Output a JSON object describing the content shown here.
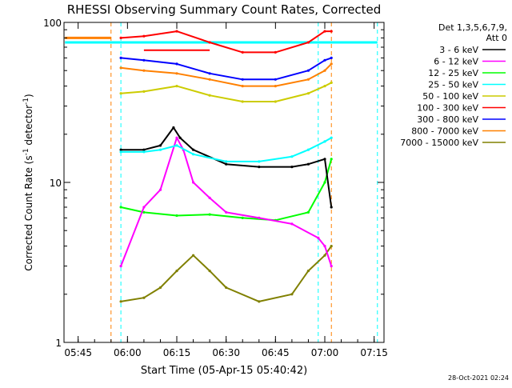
{
  "chart_data": {
    "type": "line",
    "title": "RHESSI Observing Summary Count Rates, Corrected",
    "xlabel": "Start Time (05-Apr-15 05:40:42)",
    "ylabel_main": "Corrected Count Rate (s",
    "ylabel_sup1": "-1",
    "ylabel_mid": " detector",
    "ylabel_sup2": "-1",
    "ylabel_end": ")",
    "yscale": "log",
    "ylim": [
      1,
      100
    ],
    "xlim_minutes": [
      -60,
      35
    ],
    "xlim_labels": [
      "05:40:42",
      "07:18"
    ],
    "x_ticks": [
      "05:45",
      "06:00",
      "06:15",
      "06:30",
      "06:45",
      "07:00",
      "07:15"
    ],
    "y_ticks": [
      "1",
      "10",
      "100"
    ],
    "legend_title": [
      "Det 1,3,5,6,7,9,",
      "Att 0"
    ],
    "legend_position": "right",
    "timestamp": "28-Oct-2021 02:24",
    "series": [
      {
        "name": "3 - 6 keV",
        "color": "#000000",
        "x": [
          "05:58",
          "06:05",
          "06:10",
          "06:14",
          "06:16",
          "06:20",
          "06:30",
          "06:40",
          "06:50",
          "06:55",
          "07:00",
          "07:02"
        ],
        "values": [
          16,
          16,
          17,
          22,
          19,
          16,
          13,
          12.5,
          12.5,
          13,
          14,
          7
        ]
      },
      {
        "name": "6 - 12 keV",
        "color": "#ff00ff",
        "x": [
          "05:58",
          "06:05",
          "06:10",
          "06:15",
          "06:17",
          "06:20",
          "06:25",
          "06:30",
          "06:40",
          "06:50",
          "06:58",
          "07:00",
          "07:02"
        ],
        "values": [
          3,
          7,
          9,
          19,
          16,
          10,
          8,
          6.5,
          6,
          5.5,
          4.5,
          4,
          3
        ]
      },
      {
        "name": "12 - 25 keV",
        "color": "#00ff00",
        "x": [
          "05:58",
          "06:05",
          "06:15",
          "06:25",
          "06:35",
          "06:45",
          "06:55",
          "07:00",
          "07:02"
        ],
        "values": [
          7,
          6.5,
          6.2,
          6.3,
          6,
          5.8,
          6.5,
          10,
          14
        ]
      },
      {
        "name": "25 - 50 keV",
        "color": "#00ffff",
        "x": [
          "05:58",
          "06:05",
          "06:10",
          "06:15",
          "06:20",
          "06:30",
          "06:40",
          "06:50",
          "06:55",
          "07:00",
          "07:02"
        ],
        "values": [
          15.5,
          15.5,
          16,
          17,
          15,
          13.5,
          13.5,
          14.5,
          16,
          18,
          19
        ]
      },
      {
        "name": "50 - 100 keV",
        "color": "#cccc00",
        "x": [
          "05:58",
          "06:05",
          "06:15",
          "06:25",
          "06:35",
          "06:45",
          "06:55",
          "07:00",
          "07:02"
        ],
        "values": [
          36,
          37,
          40,
          35,
          32,
          32,
          36,
          40,
          42
        ]
      },
      {
        "name": "100 - 300 keV",
        "color": "#ff0000",
        "x": [
          "05:58",
          "06:05",
          "06:15",
          "06:25",
          "06:35",
          "06:45",
          "06:55",
          "07:00",
          "07:02"
        ],
        "values": [
          80,
          82,
          88,
          75,
          65,
          65,
          75,
          88,
          88
        ]
      },
      {
        "name": "300 - 800 keV",
        "color": "#0000ff",
        "x": [
          "05:58",
          "06:05",
          "06:15",
          "06:25",
          "06:35",
          "06:45",
          "06:55",
          "07:00",
          "07:02"
        ],
        "values": [
          60,
          58,
          55,
          48,
          44,
          44,
          50,
          58,
          60
        ]
      },
      {
        "name": "800 - 7000 keV",
        "color": "#ff8000",
        "x": [
          "05:58",
          "06:05",
          "06:15",
          "06:25",
          "06:35",
          "06:45",
          "06:55",
          "07:00",
          "07:02"
        ],
        "values": [
          52,
          50,
          48,
          44,
          40,
          40,
          44,
          50,
          55
        ]
      },
      {
        "name": "7000 - 15000 keV",
        "color": "#808000",
        "x": [
          "05:58",
          "06:05",
          "06:10",
          "06:15",
          "06:20",
          "06:25",
          "06:30",
          "06:40",
          "06:50",
          "06:55",
          "07:00",
          "07:02"
        ],
        "values": [
          1.8,
          1.9,
          2.2,
          2.8,
          3.5,
          2.8,
          2.2,
          1.8,
          2,
          2.8,
          3.5,
          4
        ]
      }
    ],
    "annotations": {
      "orange_level": {
        "color": "#ff8000",
        "x_start": "05:41",
        "x_end": "05:55",
        "value": 80
      },
      "cyan_level": {
        "color": "#00ffff",
        "x_start": "05:41",
        "x_end": "07:16",
        "value": 75
      },
      "orange_dashed_lines": {
        "color": "#ff8000",
        "x": [
          "05:55",
          "07:02"
        ]
      },
      "cyan_dashed_lines": {
        "color": "#00ffff",
        "x": [
          "05:58",
          "06:58",
          "07:16"
        ]
      },
      "red_segment": {
        "color": "#ff0000",
        "x_start": "06:05",
        "x_end": "06:25",
        "value": 67
      }
    }
  }
}
